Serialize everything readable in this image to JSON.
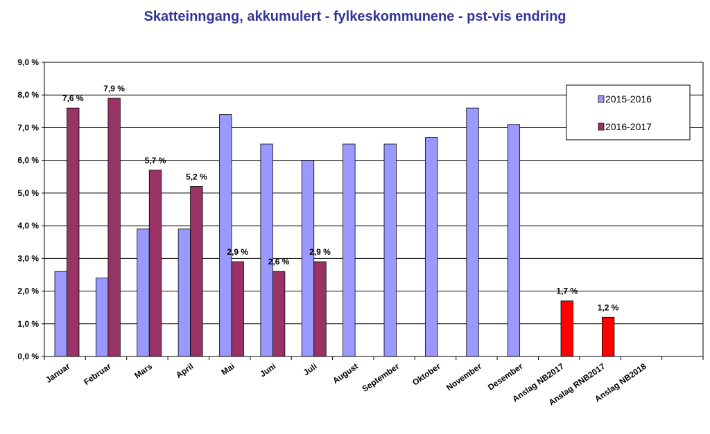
{
  "chart_data": {
    "type": "bar",
    "title": "Skatteinngang, akkumulert - fylkeskommunene - pst-vis endring",
    "categories": [
      "Januar",
      "Februar",
      "Mars",
      "April",
      "Mai",
      "Juni",
      "Juli",
      "August",
      "September",
      "Oktober",
      "November",
      "Desember",
      "Anslag NB2017",
      "Anslag RNB2017",
      "Anslag NB2018",
      null
    ],
    "series": [
      {
        "name": "2015-2016",
        "color": "#9999ff",
        "values": [
          2.6,
          2.4,
          3.9,
          3.9,
          7.4,
          6.5,
          6.0,
          6.5,
          6.5,
          6.7,
          7.6,
          7.1,
          null,
          null,
          null,
          null
        ]
      },
      {
        "name": "2016-2017",
        "color": "#993366",
        "point_colors": [
          "#993366",
          "#993366",
          "#993366",
          "#993366",
          "#993366",
          "#993366",
          "#993366",
          null,
          null,
          null,
          null,
          null,
          "#ff0000",
          "#ff0000",
          null,
          null
        ],
        "values": [
          7.6,
          7.9,
          5.7,
          5.2,
          2.9,
          2.6,
          2.9,
          null,
          null,
          null,
          null,
          null,
          1.7,
          1.2,
          null,
          null
        ],
        "value_labels": [
          "7,6 %",
          "7,9 %",
          "5,7 %",
          "5,2 %",
          "2,9 %",
          "2,6 %",
          "2,9 %",
          null,
          null,
          null,
          null,
          null,
          "1,7 %",
          "1,2 %",
          null,
          null
        ]
      }
    ],
    "ylim": [
      0,
      9
    ],
    "yticks": [
      {
        "value": 0,
        "label": "0,0 %"
      },
      {
        "value": 1,
        "label": "1,0 %"
      },
      {
        "value": 2,
        "label": "2,0 %"
      },
      {
        "value": 3,
        "label": "3,0 %"
      },
      {
        "value": 4,
        "label": "4,0 %"
      },
      {
        "value": 5,
        "label": "5,0 %"
      },
      {
        "value": 6,
        "label": "6,0 %"
      },
      {
        "value": 7,
        "label": "7,0 %"
      },
      {
        "value": 8,
        "label": "8,0 %"
      },
      {
        "value": 9,
        "label": "9,0 %"
      }
    ],
    "grid": true,
    "legend": "upper right"
  }
}
